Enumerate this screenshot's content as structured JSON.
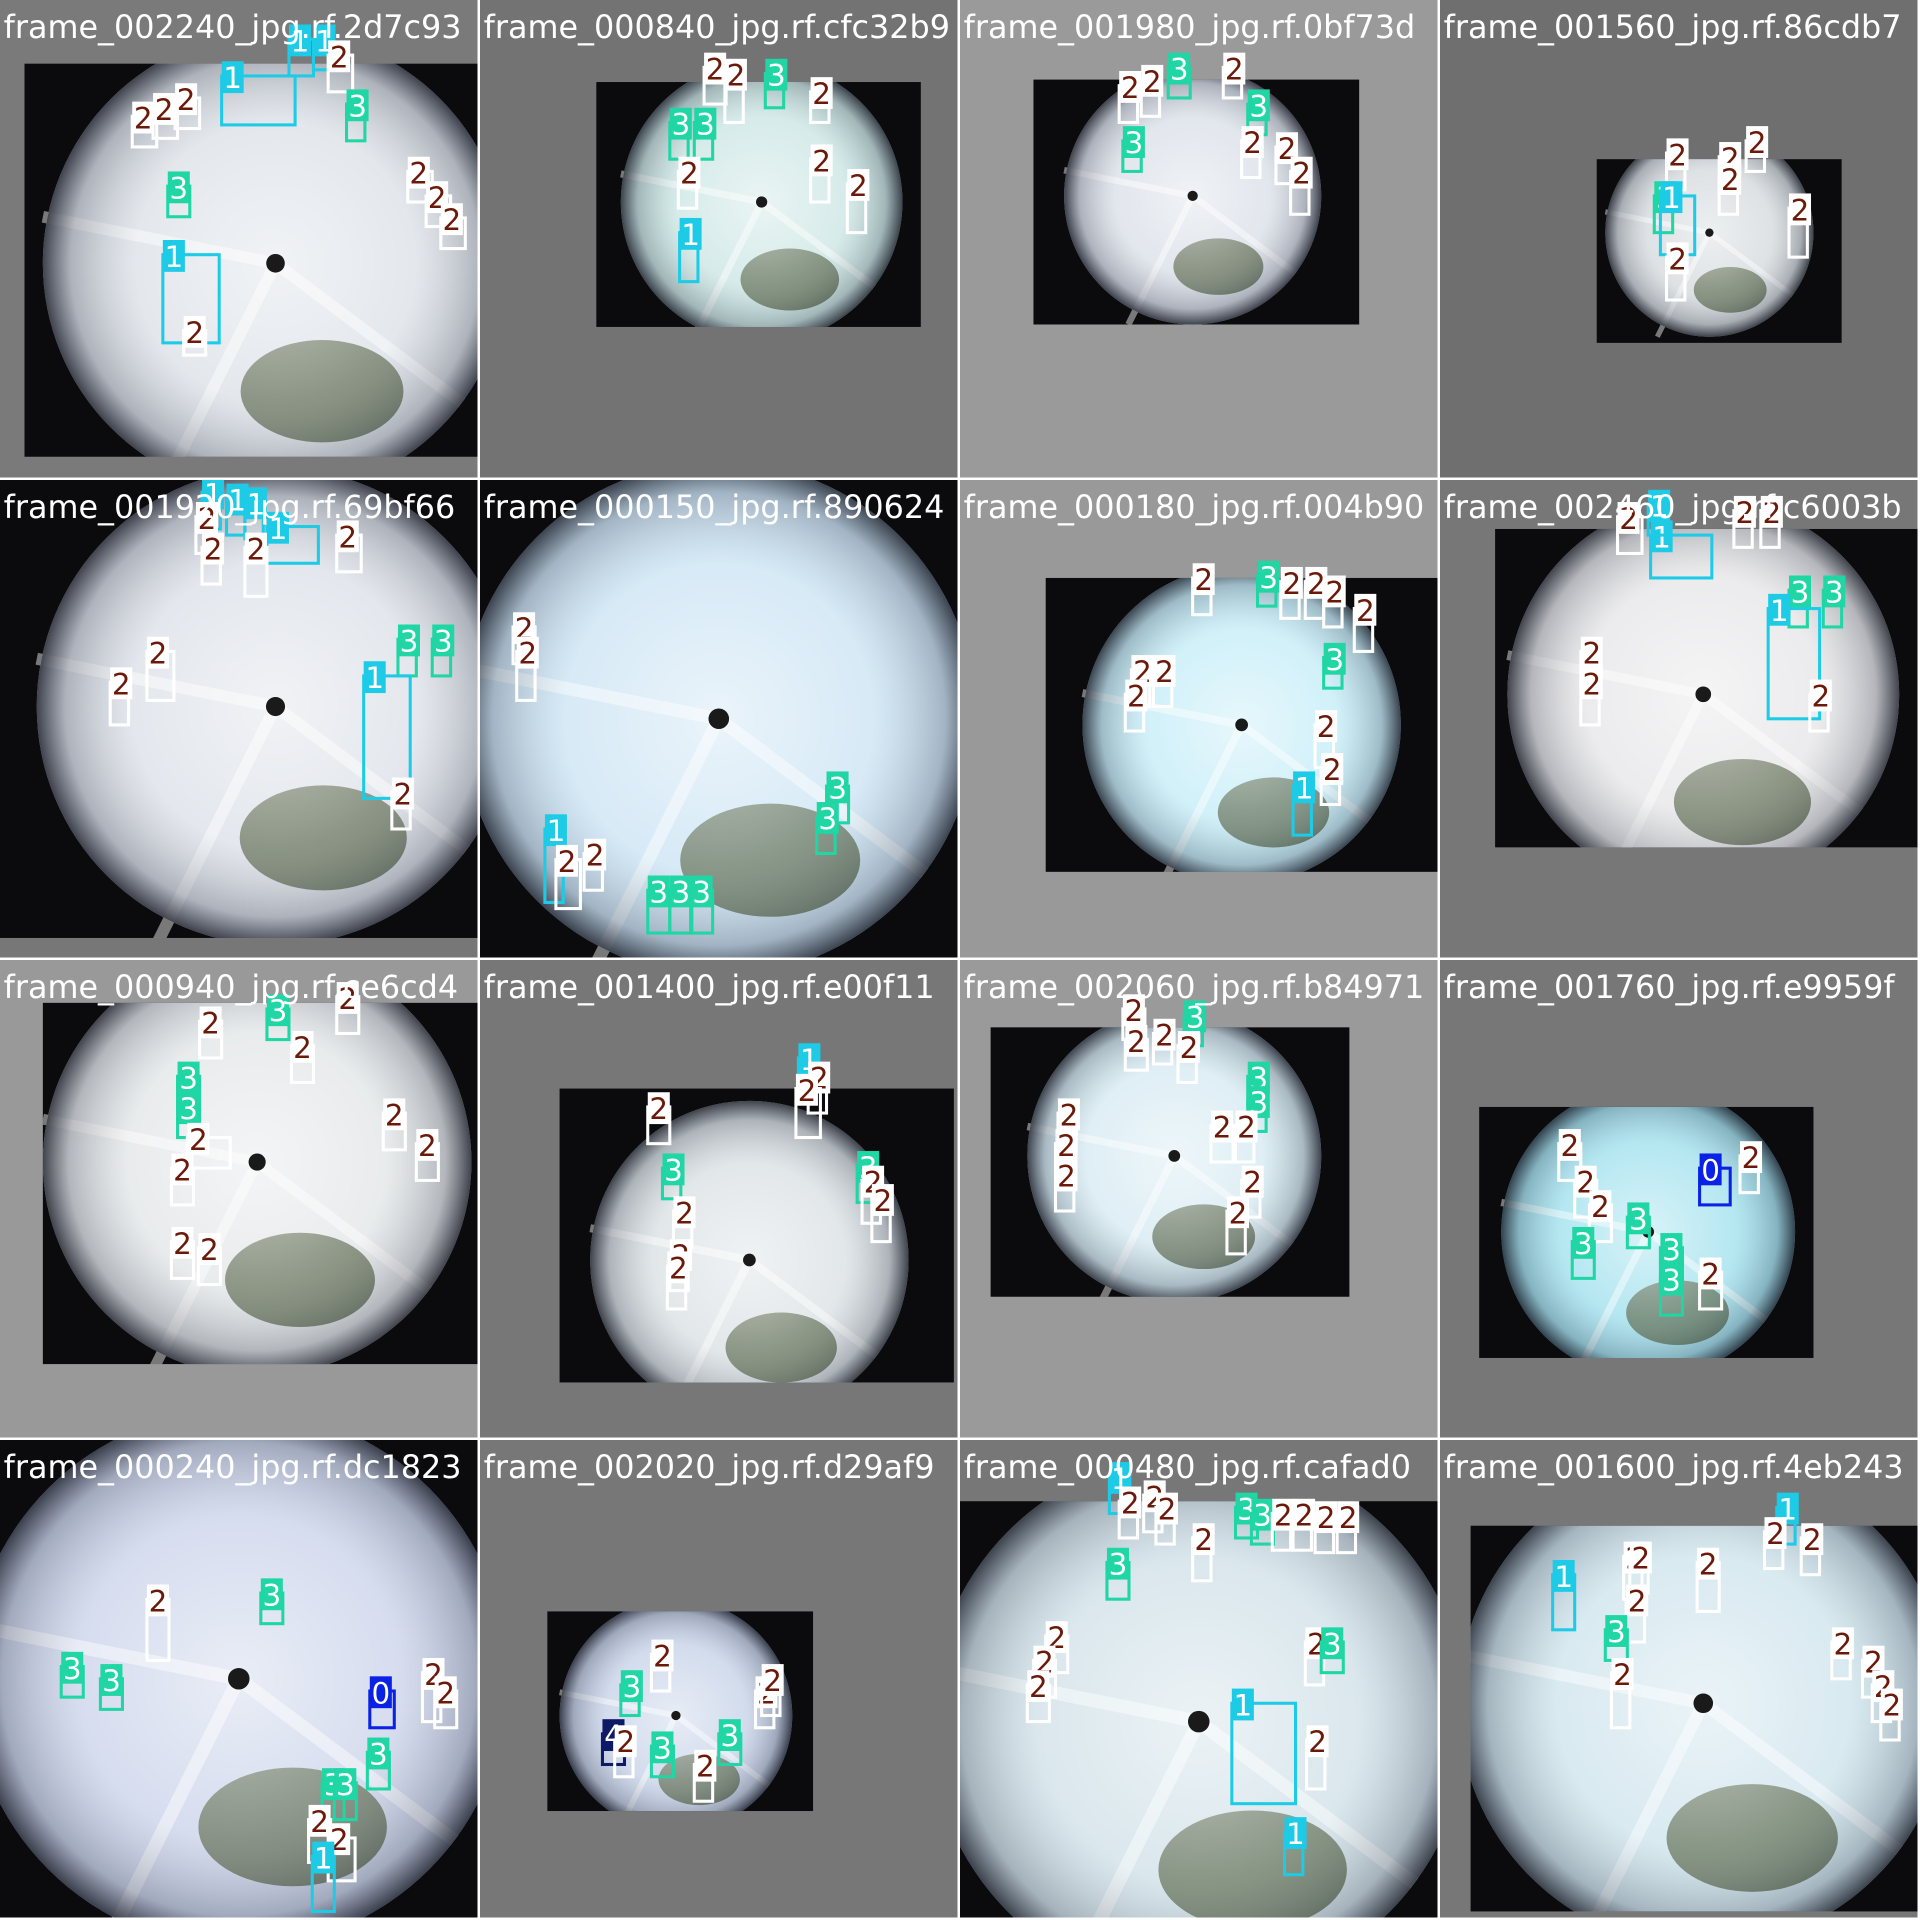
{
  "cells": [
    {
      "title": "frame_002240_jpg.rf.2d7c93",
      "boxes": [
        "1",
        "1",
        "1",
        "2",
        "3",
        "1",
        "3",
        "2",
        "2",
        "2",
        "2",
        "2",
        "2",
        "2"
      ]
    },
    {
      "title": "frame_000840_jpg.rf.cfc32b9",
      "boxes": [
        "2",
        "2",
        "3",
        "2",
        "3",
        "3",
        "2",
        "2",
        "2",
        "1"
      ]
    },
    {
      "title": "frame_001980_jpg.rf.0bf73d",
      "boxes": [
        "2",
        "2",
        "3",
        "2",
        "3",
        "3",
        "2",
        "2",
        "2"
      ]
    },
    {
      "title": "frame_001560_jpg.rf.86cdb7",
      "boxes": [
        "2",
        "2",
        "2",
        "3",
        "1",
        "2",
        "2",
        "2"
      ]
    },
    {
      "title": "frame_001920_jpg.rf.69bf66",
      "boxes": [
        "1",
        "1",
        "1",
        "1",
        "2",
        "2",
        "2",
        "2",
        "3",
        "3",
        "1",
        "2",
        "2",
        "2"
      ]
    },
    {
      "title": "frame_000150_jpg.rf.890624",
      "boxes": [
        "2",
        "2",
        "1",
        "2",
        "2",
        "3",
        "3",
        "3",
        "3",
        "3"
      ]
    },
    {
      "title": "frame_000180_jpg.rf.004b90",
      "boxes": [
        "2",
        "3",
        "2",
        "2",
        "2",
        "2",
        "3",
        "2",
        "2",
        "2",
        "2",
        "2",
        "1"
      ]
    },
    {
      "title": "frame_002460_jpg.rf.c6003b",
      "boxes": [
        "2",
        "1",
        "1",
        "2",
        "2",
        "3",
        "3",
        "1",
        "2",
        "2",
        "2"
      ]
    },
    {
      "title": "frame_000940_jpg.rf.ce6cd4",
      "boxes": [
        "3",
        "2",
        "2",
        "2",
        "3",
        "3",
        "2",
        "2",
        "2",
        "2",
        "2",
        "2"
      ]
    },
    {
      "title": "frame_001400_jpg.rf.e00f11",
      "boxes": [
        "1",
        "2",
        "2",
        "2",
        "3",
        "3",
        "2",
        "2",
        "2",
        "2",
        "2"
      ]
    },
    {
      "title": "frame_002060_jpg.rf.b84971",
      "boxes": [
        "2",
        "2",
        "2",
        "3",
        "2",
        "3",
        "3",
        "2",
        "2",
        "2",
        "2",
        "2",
        "2",
        "2"
      ]
    },
    {
      "title": "frame_001760_jpg.rf.e9959f",
      "boxes": [
        "2",
        "2",
        "2",
        "0",
        "2",
        "3",
        "3",
        "3",
        "3",
        "2"
      ]
    },
    {
      "title": "frame_000240_jpg.rf.dc1823",
      "boxes": [
        "2",
        "3",
        "3",
        "3",
        "2",
        "2",
        "0",
        "3",
        "3",
        "3",
        "2",
        "2",
        "1"
      ]
    },
    {
      "title": "frame_002020_jpg.rf.d29af9",
      "boxes": [
        "2",
        "3",
        "2",
        "2",
        "4",
        "2",
        "3",
        "3",
        "2"
      ]
    },
    {
      "title": "frame_000480_jpg.rf.cafad0",
      "boxes": [
        "1",
        "2",
        "2",
        "2",
        "3",
        "3",
        "2",
        "2",
        "2",
        "2",
        "3",
        "2",
        "2",
        "2",
        "2",
        "1",
        "2",
        "3",
        "2",
        "1"
      ]
    },
    {
      "title": "frame_001600_jpg.rf.4eb243",
      "boxes": [
        "1",
        "2",
        "2",
        "1",
        "2",
        "2",
        "2",
        "2",
        "3",
        "2",
        "2",
        "2",
        "2",
        "2"
      ]
    }
  ],
  "class_styles": [
    {
      "fill": "#0a22e6",
      "text": "#ffffff"
    },
    {
      "fill": "#1ecbe6",
      "text": "#ffffff"
    },
    {
      "fill": "#ffffff",
      "text": "#6b1a0a"
    },
    {
      "fill": "#1fd6a4",
      "text": "#ffffff"
    },
    {
      "fill": "#0f1a66",
      "text": "#ffffff"
    }
  ]
}
